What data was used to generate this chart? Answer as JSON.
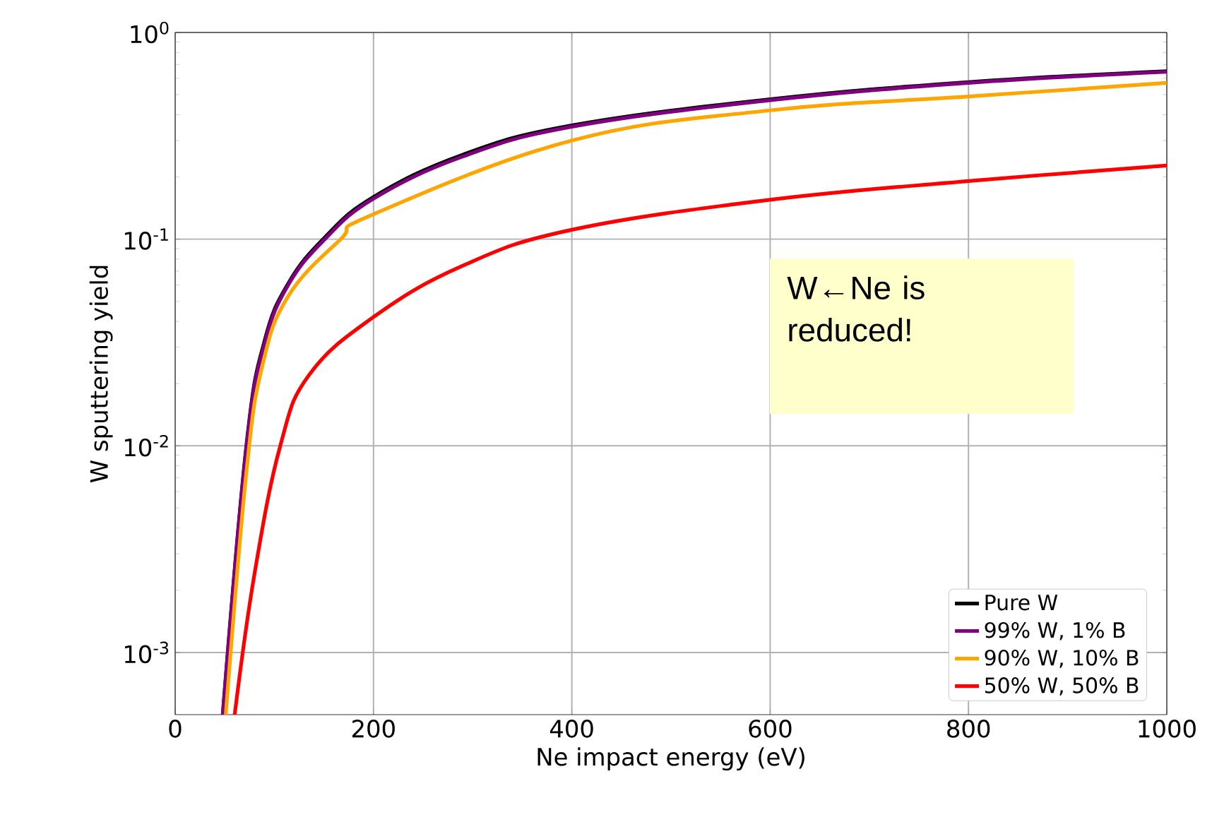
{
  "chart_data": {
    "type": "line",
    "xlabel": "Ne impact energy (eV)",
    "ylabel": "W sputtering yield",
    "log": "y",
    "grid": true,
    "legend": "bottom right",
    "xlim": [
      0,
      1000
    ],
    "xticks": [
      0,
      200,
      400,
      600,
      800,
      1000
    ],
    "ylim": [
      0.0005,
      1
    ],
    "yticks": [
      {
        "value": 0.001,
        "label": "10$^{-3}$"
      },
      {
        "value": 0.01,
        "label": "10$^{-2}$"
      },
      {
        "value": 0.1,
        "label": "10$^{-1}$"
      },
      {
        "value": 1,
        "label": "10$^{0}$"
      }
    ],
    "annotations": [
      "W←Ne is reduced!"
    ],
    "series": [
      {
        "name": "Pure W",
        "color": "#000000",
        "x": [
          48,
          72,
          90,
          114,
          151,
          200,
          289,
          400,
          600,
          800,
          1000
        ],
        "values": [
          0.0005,
          0.0102,
          0.032,
          0.061,
          0.102,
          0.16,
          0.255,
          0.355,
          0.475,
          0.575,
          0.65
        ]
      },
      {
        "name": "99% W, 1% B",
        "color": "#800080",
        "x": [
          48,
          72,
          90,
          114,
          151,
          200,
          289,
          400,
          600,
          800,
          1000
        ],
        "values": [
          0.0005,
          0.01,
          0.031,
          0.06,
          0.1,
          0.157,
          0.25,
          0.35,
          0.47,
          0.57,
          0.645
        ]
      },
      {
        "name": "90% W, 10% B",
        "color": "#ffa500",
        "x": [
          51,
          72,
          88,
          114,
          167,
          200,
          400,
          600,
          800,
          1000
        ],
        "values": [
          0.0005,
          0.0076,
          0.0245,
          0.053,
          0.1,
          0.132,
          0.3,
          0.42,
          0.49,
          0.57
        ]
      },
      {
        "name": "50% W, 50% B",
        "color": "#ff0000",
        "x": [
          60,
          80,
          106,
          135,
          200,
          289,
          400,
          600,
          800,
          1000
        ],
        "values": [
          0.0005,
          0.0024,
          0.01,
          0.022,
          0.042,
          0.074,
          0.111,
          0.155,
          0.191,
          0.227
        ]
      }
    ]
  }
}
